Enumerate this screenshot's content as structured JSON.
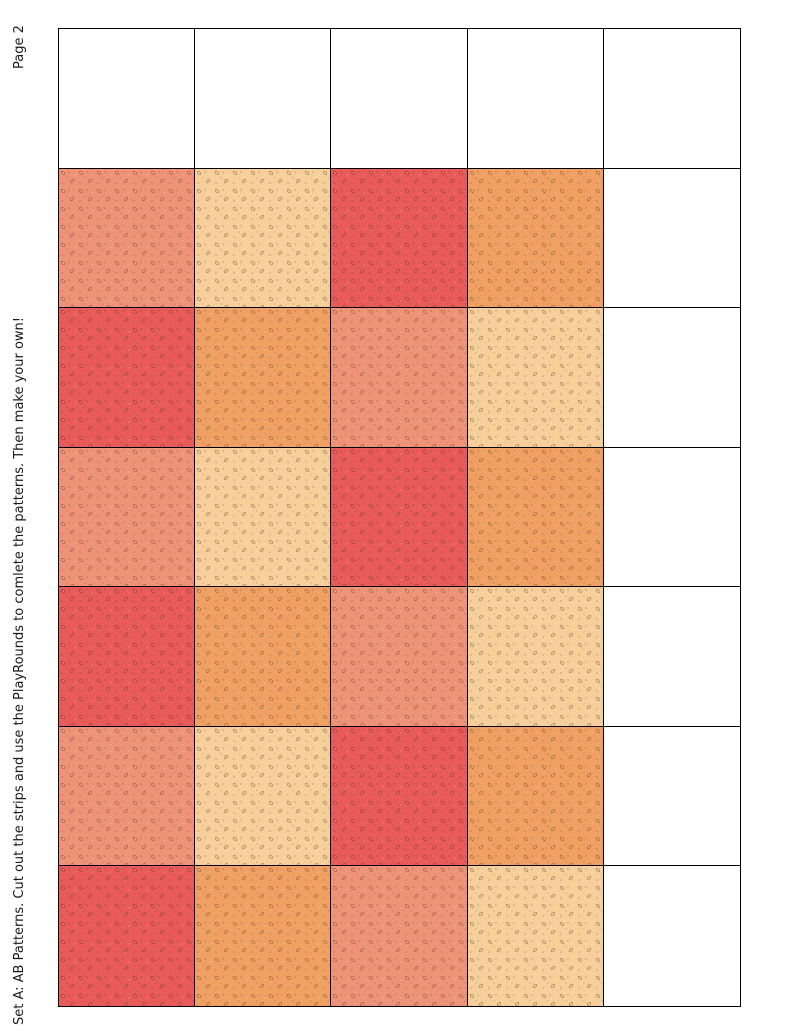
{
  "page": {
    "label": "Page 2",
    "instructions": "Set A: AB Patterns. Cut out the strips and use the PlayRounds to comlete the patterns. Then make your own!"
  },
  "grid": {
    "rows": [
      [
        "blank",
        "blank",
        "blank",
        "blank",
        "blank"
      ],
      [
        "salmon",
        "peach",
        "red",
        "orange",
        "blank"
      ],
      [
        "red",
        "orange",
        "salmon",
        "peach",
        "blank"
      ],
      [
        "salmon",
        "peach",
        "red",
        "orange",
        "blank"
      ],
      [
        "red",
        "orange",
        "salmon",
        "peach",
        "blank"
      ],
      [
        "salmon",
        "peach",
        "red",
        "orange",
        "blank"
      ],
      [
        "red",
        "orange",
        "salmon",
        "peach",
        "blank"
      ]
    ],
    "colors": {
      "red": "#e85b58",
      "orange": "#f0a062",
      "salmon": "#ef9378",
      "peach": "#f6cf9a",
      "blank": "#ffffff"
    }
  }
}
